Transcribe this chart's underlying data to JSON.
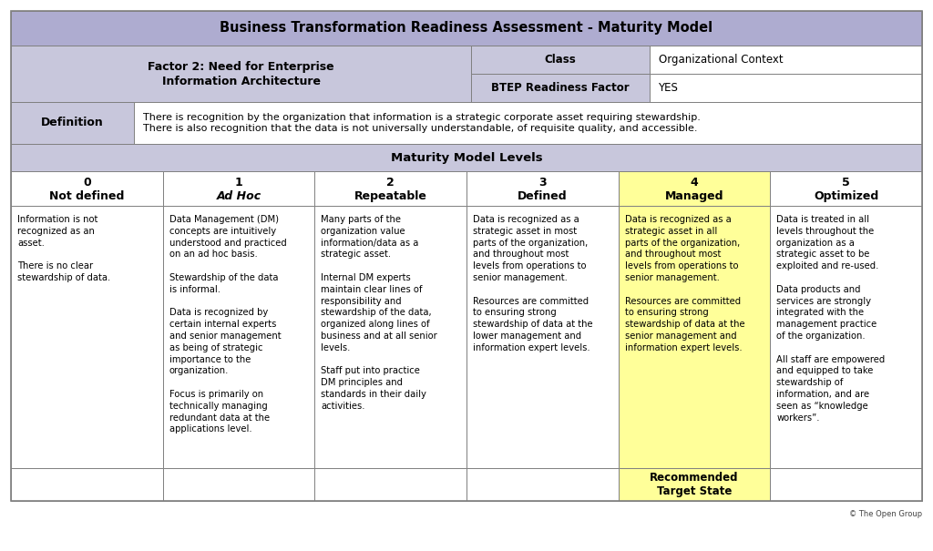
{
  "title": "Business Transformation Readiness Assessment - Maturity Model",
  "factor_label": "Factor 2: Need for Enterprise\nInformation Architecture",
  "class_label": "Class",
  "class_value": "Organizational Context",
  "btep_label": "BTEP Readiness Factor",
  "btep_value": "YES",
  "definition_label": "Definition",
  "definition_text": "There is recognition by the organization that information is a strategic corporate asset requiring stewardship.\nThere is also recognition that the data is not universally understandable, of requisite quality, and accessible.",
  "maturity_label": "Maturity Model Levels",
  "levels_line1": [
    "0",
    "1",
    "2",
    "3",
    "4",
    "5"
  ],
  "levels_line2": [
    "Not defined",
    "Ad Hoc",
    "Repeatable",
    "Defined",
    "Managed",
    "Optimized"
  ],
  "levels_italic": [
    false,
    true,
    false,
    false,
    false,
    false
  ],
  "level_contents": [
    "Information is not\nrecognized as an\nasset.\n\nThere is no clear\nstewardship of data.",
    "Data Management (DM)\nconcepts are intuitively\nunderstood and practiced\non an ad hoc basis.\n\nStewardship of the data\nis informal.\n\nData is recognized by\ncertain internal experts\nand senior management\nas being of strategic\nimportance to the\norganization.\n\nFocus is primarily on\ntechnically managing\nredundant data at the\napplications level.",
    "Many parts of the\norganization value\ninformation/data as a\nstrategic asset.\n\nInternal DM experts\nmaintain clear lines of\nresponsibility and\nstewardship of the data,\norganized along lines of\nbusiness and at all senior\nlevels.\n\nStaff put into practice\nDM principles and\nstandards in their daily\nactivities.",
    "Data is recognized as a\nstrategic asset in most\nparts of the organization,\nand throughout most\nlevels from operations to\nsenior management.\n\nResources are committed\nto ensuring strong\nstewardship of data at the\nlower management and\ninformation expert levels.",
    "Data is recognized as a\nstrategic asset in all\nparts of the organization,\nand throughout most\nlevels from operations to\nsenior management.\n\nResources are committed\nto ensuring strong\nstewardship of data at the\nsenior management and\ninformation expert levels.",
    "Data is treated in all\nlevels throughout the\norganization as a\nstrategic asset to be\nexploited and re-used.\n\nData products and\nservices are strongly\nintegrated with the\nmanagement practice\nof the organization.\n\nAll staff are empowered\nand equipped to take\nstewardship of\ninformation, and are\nseen as “knowledge\nworkers”."
  ],
  "highlighted_col": 4,
  "recommended_label": "Recommended\nTarget State",
  "highlight_color": "#FFFF99",
  "header_bg": "#AEACD0",
  "subheader_bg": "#C8C7DC",
  "white_bg": "#FFFFFF",
  "footer_text": "© The Open Group",
  "border_color": "#808080",
  "title_fontsize": 10.5,
  "header_fontsize": 8.5,
  "level_header_fontsize": 9,
  "cell_fontsize": 7.2,
  "footer_fontsize": 6
}
